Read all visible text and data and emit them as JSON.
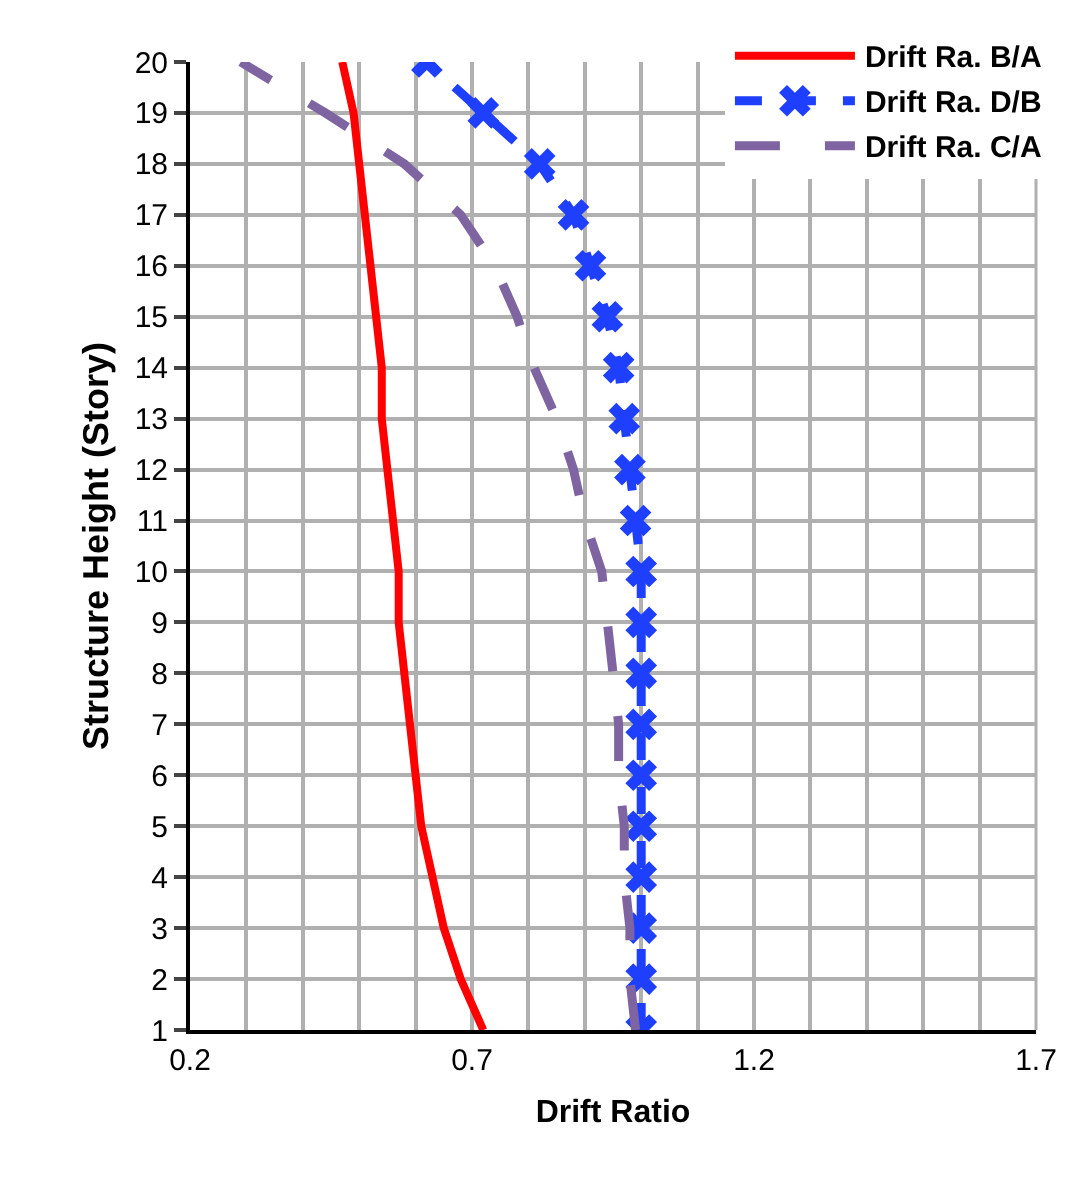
{
  "chart_data": {
    "type": "line",
    "xlabel": "Drift Ratio",
    "ylabel": "Structure Height (Story)",
    "series": [
      {
        "name": "Drift Ra. B/A",
        "color": "#ff0000",
        "line_style": "solid",
        "marker": "none",
        "x": [
          0.72,
          0.68,
          0.65,
          0.63,
          0.61,
          0.6,
          0.59,
          0.58,
          0.57,
          0.57,
          0.56,
          0.55,
          0.54,
          0.54,
          0.53,
          0.52,
          0.51,
          0.5,
          0.49,
          0.47
        ],
        "values": [
          1,
          2,
          3,
          4,
          5,
          6,
          7,
          8,
          9,
          10,
          11,
          12,
          13,
          14,
          15,
          16,
          17,
          18,
          19,
          20
        ]
      },
      {
        "name": "Drift Ra. D/B",
        "color": "#1f3fff",
        "line_style": "dashed",
        "marker": "cross",
        "x": [
          1.0,
          1.0,
          1.0,
          1.0,
          1.0,
          1.0,
          1.0,
          1.0,
          1.0,
          1.0,
          0.99,
          0.98,
          0.97,
          0.96,
          0.94,
          0.91,
          0.88,
          0.82,
          0.72,
          0.62
        ],
        "values": [
          1,
          2,
          3,
          4,
          5,
          6,
          7,
          8,
          9,
          10,
          11,
          12,
          13,
          14,
          15,
          16,
          17,
          18,
          19,
          20
        ]
      },
      {
        "name": "Drift Ra. C/A",
        "color": "#7f64a2",
        "line_style": "dashed",
        "marker": "none",
        "x": [
          0.99,
          0.98,
          0.98,
          0.97,
          0.97,
          0.96,
          0.96,
          0.95,
          0.94,
          0.93,
          0.9,
          0.88,
          0.85,
          0.81,
          0.78,
          0.74,
          0.68,
          0.58,
          0.44,
          0.29
        ],
        "values": [
          1,
          2,
          3,
          4,
          5,
          6,
          7,
          8,
          9,
          10,
          11,
          12,
          13,
          14,
          15,
          16,
          17,
          18,
          19,
          20
        ]
      }
    ],
    "xlim": [
      0.2,
      1.7
    ],
    "xticks": [
      0.2,
      {
        "value": 0.3,
        "label": null
      },
      {
        "value": 0.4,
        "label": null
      },
      {
        "value": 0.5,
        "label": null
      },
      {
        "value": 0.6,
        "label": null
      },
      0.7,
      {
        "value": 0.8,
        "label": null
      },
      {
        "value": 0.9,
        "label": null
      },
      {
        "value": 1.0,
        "label": null
      },
      {
        "value": 1.1,
        "label": null
      },
      1.2,
      {
        "value": 1.3,
        "label": null
      },
      {
        "value": 1.4,
        "label": null
      },
      {
        "value": 1.5,
        "label": null
      },
      {
        "value": 1.6,
        "label": null
      },
      1.7
    ],
    "ylim": [
      1,
      20
    ],
    "yticks": [
      1,
      2,
      3,
      4,
      5,
      6,
      7,
      8,
      9,
      10,
      11,
      12,
      13,
      14,
      15,
      16,
      17,
      18,
      19,
      20
    ],
    "grid": true,
    "legend": "top right"
  }
}
